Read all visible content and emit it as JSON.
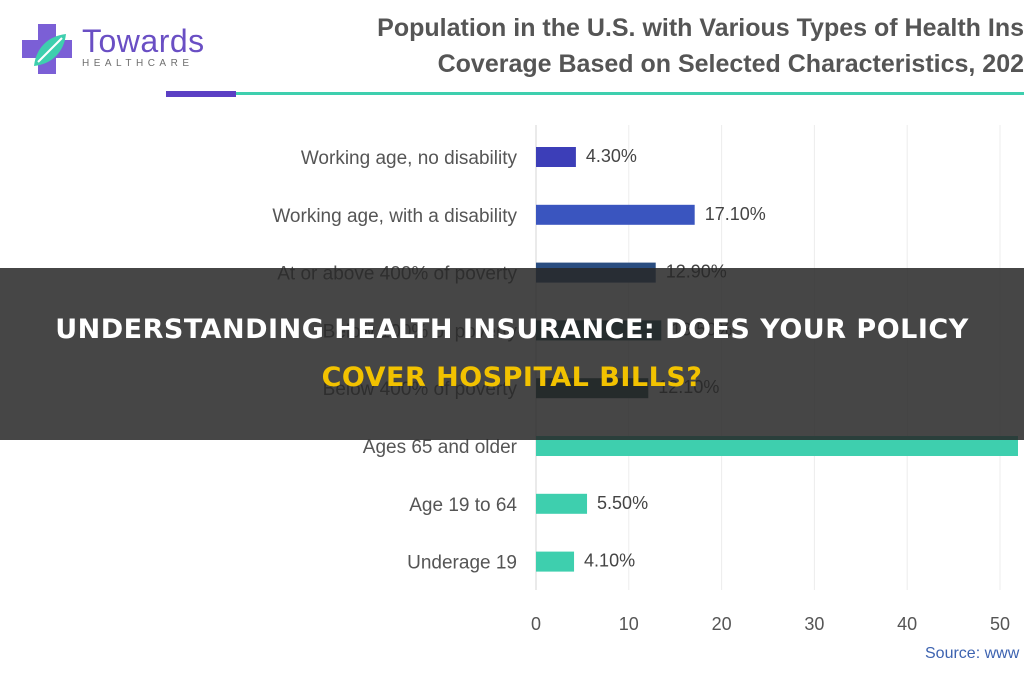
{
  "brand": {
    "name": "Towards",
    "sub": "HEALTHCARE",
    "icon": "cross-leaf-logo-icon",
    "colors": {
      "primary": "#6a4fc4",
      "accent": "#3ecfae",
      "cross": "#7b5fd6"
    }
  },
  "headline": {
    "line1": "UNDERSTANDING HEALTH INSURANCE: DOES YOUR POLICY",
    "line2": "COVER HOSPITAL BILLS?"
  },
  "source_text": "Source: www",
  "chart_data": {
    "type": "bar",
    "orientation": "horizontal",
    "title": [
      "Population in the U.S. with Various Types of Health Ins",
      "Coverage Based on Selected Characteristics, 202"
    ],
    "categories": [
      "Working age, no disability",
      "Working age, with a disability",
      "At or above 400% of poverty",
      "Below 100% of poverty",
      "Below 400% of poverty",
      "Ages 65 and older",
      "Age 19 to 64",
      "Underage 19"
    ],
    "values": [
      4.3,
      17.1,
      12.9,
      13.5,
      12.1,
      52,
      5.5,
      4.1
    ],
    "value_labels": [
      "4.30%",
      "17.10%",
      "12.90%",
      "13.50%",
      "12.10%",
      "",
      "5.50%",
      "4.10%"
    ],
    "colors": [
      "#3c3eb8",
      "#3a55bf",
      "#2a4d80",
      "#1b5058",
      "#173f45",
      "#3ecfae",
      "#3ecfae",
      "#3ecfae"
    ],
    "xlim": [
      0,
      52
    ],
    "xticks": [
      0,
      10,
      20,
      30,
      40,
      50
    ],
    "grid": "vertical",
    "xlabel": "",
    "ylabel": ""
  }
}
